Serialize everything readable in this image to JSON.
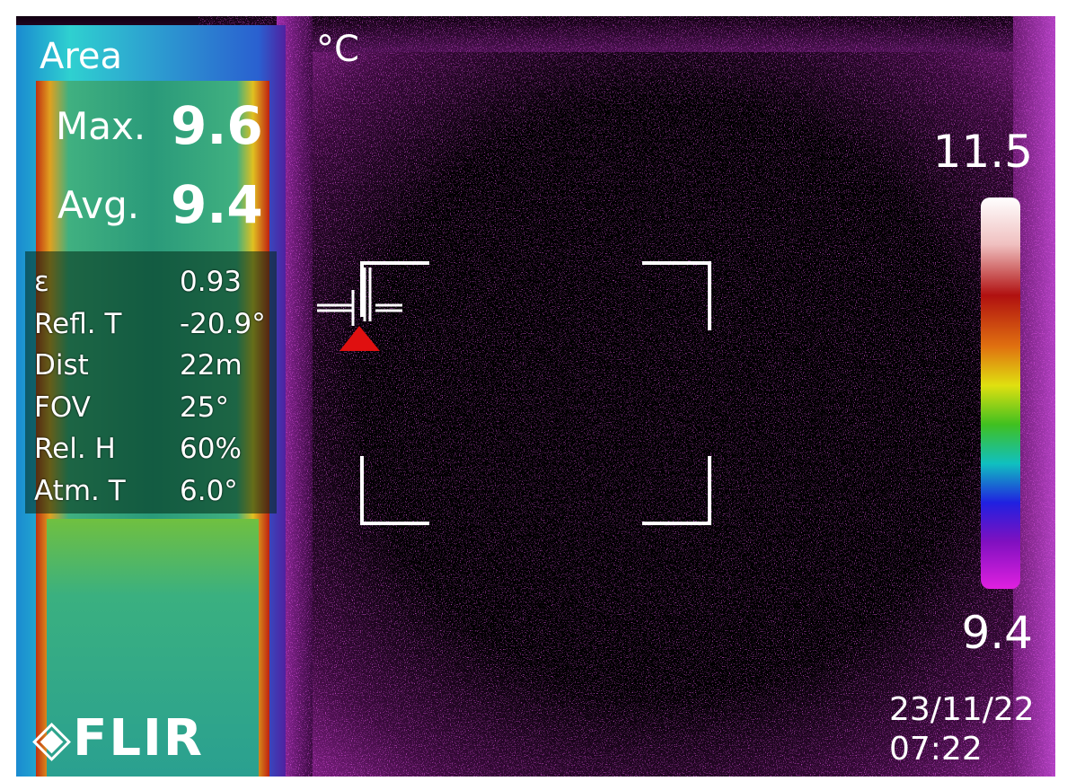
{
  "overlay": {
    "area_label": "Area",
    "unit": "°C",
    "max_label": "Max.",
    "max_value": "9.6",
    "avg_label": "Avg.",
    "avg_value": "9.4",
    "parameters": [
      {
        "label": "ε",
        "value": "0.93"
      },
      {
        "label": "Refl. T",
        "value": "-20.9°"
      },
      {
        "label": "Dist",
        "value": "22m"
      },
      {
        "label": "FOV",
        "value": "25°"
      },
      {
        "label": "Rel. H",
        "value": "60%"
      },
      {
        "label": "Atm. T",
        "value": "6.0°"
      }
    ],
    "scale_max": "11.5",
    "scale_min": "9.4",
    "date": "23/11/22",
    "time": "07:22",
    "logo": "FLIR"
  }
}
